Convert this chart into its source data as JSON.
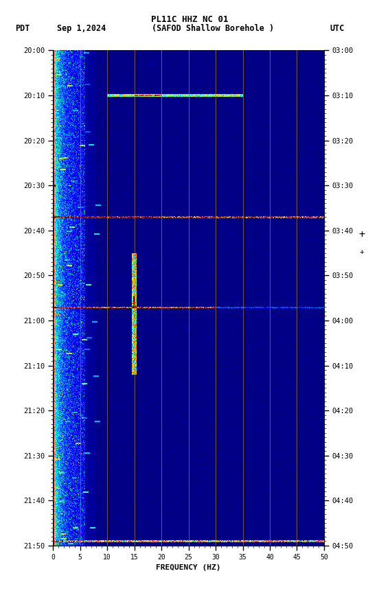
{
  "title_line1": "PL11C HHZ NC 01",
  "pdt_label": "PDT",
  "date_label": "Sep 1,2024",
  "station_label": "(SAFOD Shallow Borehole )",
  "utc_label": "UTC",
  "xlabel": "FREQUENCY (HZ)",
  "freq_min": 0,
  "freq_max": 50,
  "pdt_labels": [
    "20:00",
    "20:10",
    "20:20",
    "20:30",
    "20:40",
    "20:50",
    "21:00",
    "21:10",
    "21:20",
    "21:30",
    "21:40",
    "21:50"
  ],
  "utc_labels": [
    "03:00",
    "03:10",
    "03:20",
    "03:30",
    "03:40",
    "03:50",
    "04:00",
    "04:10",
    "04:20",
    "04:30",
    "04:40",
    "04:50"
  ],
  "colormap": "jet",
  "fig_width": 5.52,
  "fig_height": 8.64,
  "dpi": 100,
  "n_time": 1100,
  "n_freq": 500,
  "vertical_lines_freq": [
    5,
    10,
    15,
    20,
    25,
    30,
    35,
    40,
    45
  ],
  "seed": 1234
}
